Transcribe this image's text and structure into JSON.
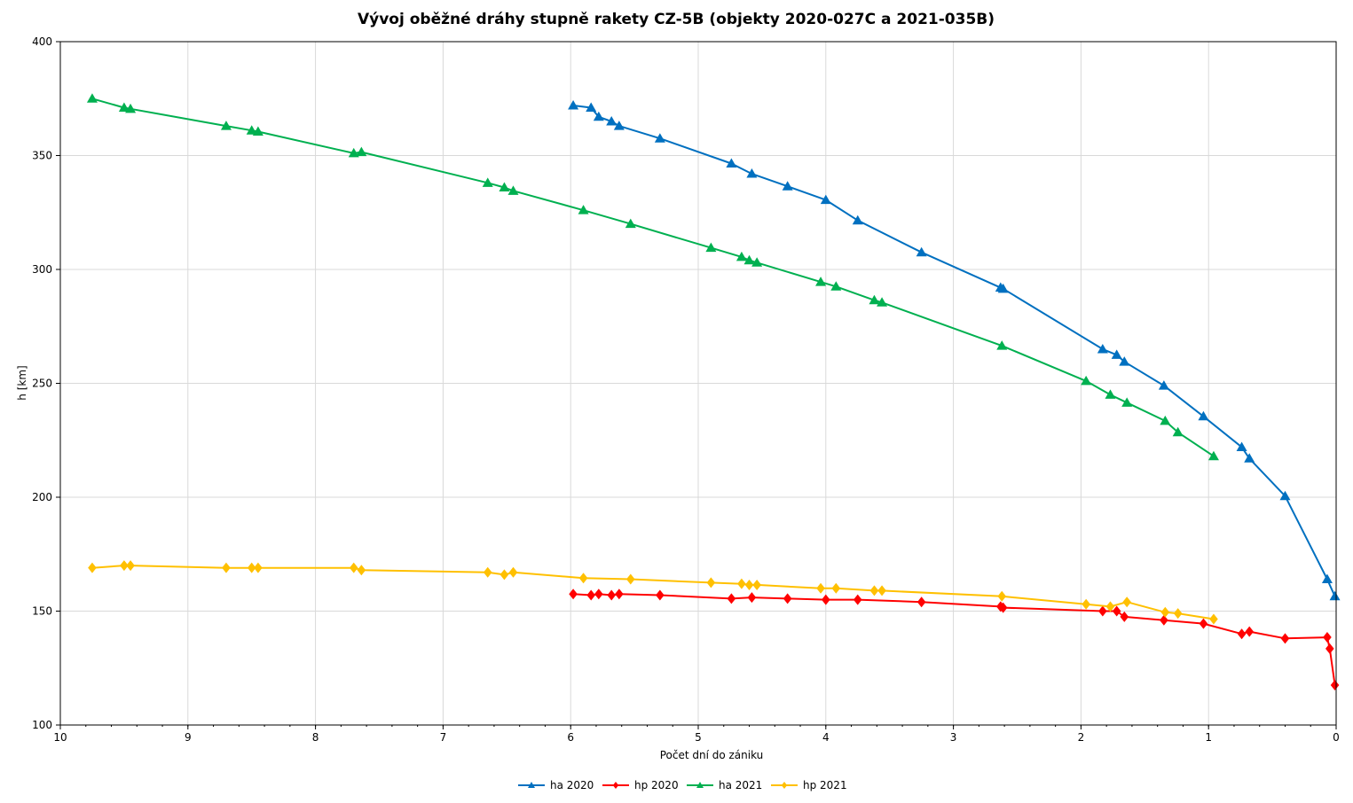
{
  "chart_data": {
    "type": "line",
    "title": "Vývoj oběžné dráhy stupně rakety CZ-5B (objekty 2020-027C a 2021-035B)",
    "xlabel": "Počet dní do zániku",
    "ylabel": "h [km]",
    "xlim": [
      10,
      0
    ],
    "ylim": [
      100,
      400
    ],
    "x_ticks": [
      10,
      9,
      8,
      7,
      6,
      5,
      4,
      3,
      2,
      1,
      0
    ],
    "y_ticks": [
      100,
      150,
      200,
      250,
      300,
      350,
      400
    ],
    "grid": true,
    "legend": "bottom",
    "series": [
      {
        "name": "ha 2020",
        "color": "#0070C0",
        "marker": "triangle",
        "points": [
          [
            5.98,
            372
          ],
          [
            5.84,
            371
          ],
          [
            5.78,
            367
          ],
          [
            5.68,
            365
          ],
          [
            5.62,
            363
          ],
          [
            5.3,
            357.5
          ],
          [
            4.74,
            346.5
          ],
          [
            4.58,
            342
          ],
          [
            4.3,
            336.5
          ],
          [
            4.0,
            330.5
          ],
          [
            3.75,
            321.5
          ],
          [
            3.25,
            307.5
          ],
          [
            2.63,
            292
          ],
          [
            2.61,
            291.5
          ],
          [
            1.83,
            265
          ],
          [
            1.72,
            262.5
          ],
          [
            1.66,
            259.5
          ],
          [
            1.35,
            249
          ],
          [
            1.04,
            235.5
          ],
          [
            0.74,
            222
          ],
          [
            0.68,
            217
          ],
          [
            0.4,
            200.5
          ],
          [
            0.07,
            164
          ],
          [
            0.01,
            156.5
          ]
        ]
      },
      {
        "name": "hp 2020",
        "color": "#FF0000",
        "marker": "diamond",
        "points": [
          [
            5.98,
            157.5
          ],
          [
            5.84,
            157
          ],
          [
            5.78,
            157.5
          ],
          [
            5.68,
            157
          ],
          [
            5.62,
            157.5
          ],
          [
            5.3,
            157
          ],
          [
            4.74,
            155.5
          ],
          [
            4.58,
            156
          ],
          [
            4.3,
            155.5
          ],
          [
            4.0,
            155
          ],
          [
            3.75,
            155
          ],
          [
            3.25,
            154
          ],
          [
            2.63,
            152
          ],
          [
            2.61,
            151.5
          ],
          [
            1.83,
            150
          ],
          [
            1.72,
            150
          ],
          [
            1.66,
            147.5
          ],
          [
            1.35,
            146
          ],
          [
            1.04,
            144.5
          ],
          [
            0.74,
            140
          ],
          [
            0.68,
            141
          ],
          [
            0.4,
            138
          ],
          [
            0.07,
            138.5
          ],
          [
            0.05,
            133.5
          ],
          [
            0.01,
            117.5
          ]
        ]
      },
      {
        "name": "ha 2021",
        "color": "#00B050",
        "marker": "triangle",
        "points": [
          [
            9.75,
            375
          ],
          [
            9.5,
            371
          ],
          [
            9.45,
            370.5
          ],
          [
            8.7,
            363
          ],
          [
            8.5,
            361
          ],
          [
            8.45,
            360.5
          ],
          [
            7.7,
            351
          ],
          [
            7.64,
            351.5
          ],
          [
            6.65,
            338
          ],
          [
            6.52,
            336
          ],
          [
            6.45,
            334.5
          ],
          [
            5.9,
            326
          ],
          [
            5.53,
            320
          ],
          [
            4.9,
            309.5
          ],
          [
            4.66,
            305.5
          ],
          [
            4.6,
            304
          ],
          [
            4.54,
            303
          ],
          [
            4.04,
            294.5
          ],
          [
            3.92,
            292.5
          ],
          [
            3.62,
            286.5
          ],
          [
            3.56,
            285.5
          ],
          [
            2.62,
            266.5
          ],
          [
            1.96,
            251
          ],
          [
            1.77,
            245
          ],
          [
            1.64,
            241.5
          ],
          [
            1.34,
            233.5
          ],
          [
            1.24,
            228.5
          ],
          [
            0.96,
            218
          ]
        ]
      },
      {
        "name": "hp 2021",
        "color": "#FFC000",
        "marker": "diamond",
        "points": [
          [
            9.75,
            169
          ],
          [
            9.5,
            170
          ],
          [
            9.45,
            170
          ],
          [
            8.7,
            169
          ],
          [
            8.5,
            169
          ],
          [
            8.45,
            169
          ],
          [
            7.7,
            169
          ],
          [
            7.64,
            168
          ],
          [
            6.65,
            167
          ],
          [
            6.52,
            166
          ],
          [
            6.45,
            167
          ],
          [
            5.9,
            164.5
          ],
          [
            5.53,
            164
          ],
          [
            4.9,
            162.5
          ],
          [
            4.66,
            162
          ],
          [
            4.6,
            161.5
          ],
          [
            4.54,
            161.5
          ],
          [
            4.04,
            160
          ],
          [
            3.92,
            160
          ],
          [
            3.62,
            159
          ],
          [
            3.56,
            159
          ],
          [
            2.62,
            156.5
          ],
          [
            1.96,
            153
          ],
          [
            1.77,
            152
          ],
          [
            1.64,
            154
          ],
          [
            1.34,
            149.5
          ],
          [
            1.24,
            149
          ],
          [
            0.96,
            146.5
          ]
        ]
      }
    ]
  }
}
